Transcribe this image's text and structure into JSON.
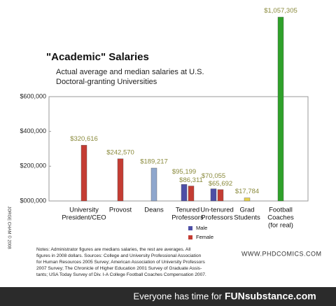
{
  "chart_data": {
    "type": "bar",
    "title": "\"Academic\" Salaries",
    "subtitle": [
      "Actual average and median salaries at U.S.",
      "Doctoral-granting Universities"
    ],
    "categories": [
      [
        "University",
        "President/CEO"
      ],
      [
        "Provost"
      ],
      [
        "Deans"
      ],
      [
        "Tenured",
        "Professors"
      ],
      [
        "Un-tenured",
        "Professors"
      ],
      [
        "Grad",
        "Students"
      ],
      [
        "Football",
        "Coaches",
        "(for real)"
      ]
    ],
    "values": [
      320616,
      242570,
      189217,
      null,
      null,
      17784,
      1057305
    ],
    "value_labels": [
      "$320,616",
      "$242,570",
      "$189,217",
      null,
      null,
      "$17,784",
      "$1,057,305"
    ],
    "colors": [
      "#c43c33",
      "#c43c33",
      "#8fa7cd",
      null,
      null,
      "#e6d04a",
      "#2fa12a"
    ],
    "series": [
      {
        "name": "Male",
        "color": "#4d4fa6",
        "values": [
          null,
          null,
          null,
          95199,
          70055,
          null,
          null
        ],
        "value_labels": [
          null,
          null,
          null,
          "$95,199",
          "$70,055",
          null,
          null
        ]
      },
      {
        "name": "Female",
        "color": "#c43c33",
        "values": [
          null,
          null,
          null,
          86311,
          65692,
          null,
          null
        ],
        "value_labels": [
          null,
          null,
          null,
          "$86,311",
          "$65,692",
          null,
          null
        ]
      }
    ],
    "ylim": [
      0,
      600000
    ],
    "yticks": [
      {
        "value": 0,
        "label": "$000,000"
      },
      {
        "value": 200000,
        "label": "$200,000"
      },
      {
        "value": 400000,
        "label": "$400,000"
      },
      {
        "value": 600000,
        "label": "$600,000"
      }
    ]
  },
  "notes": [
    "Notes: Administrator figures are medians salaries, the rest are averages. All",
    "figures in 2008 dollars. Sources: College and University Professional Association",
    "for Human Resources 2005 Survey; American Association of University Professors",
    "2007 Survey; The Chronicle of Higher Education 2001 Survey of Graduate Assis-",
    "tants; USA Today Survey of Div. I-A College Football Coaches Compensation 2007."
  ],
  "website": "WWW.PHDCOMICS.COM",
  "credit": "JORGE CHAM © 2008",
  "footer": {
    "text": "Everyone has time for",
    "brand": "FUNsubstance.com"
  }
}
